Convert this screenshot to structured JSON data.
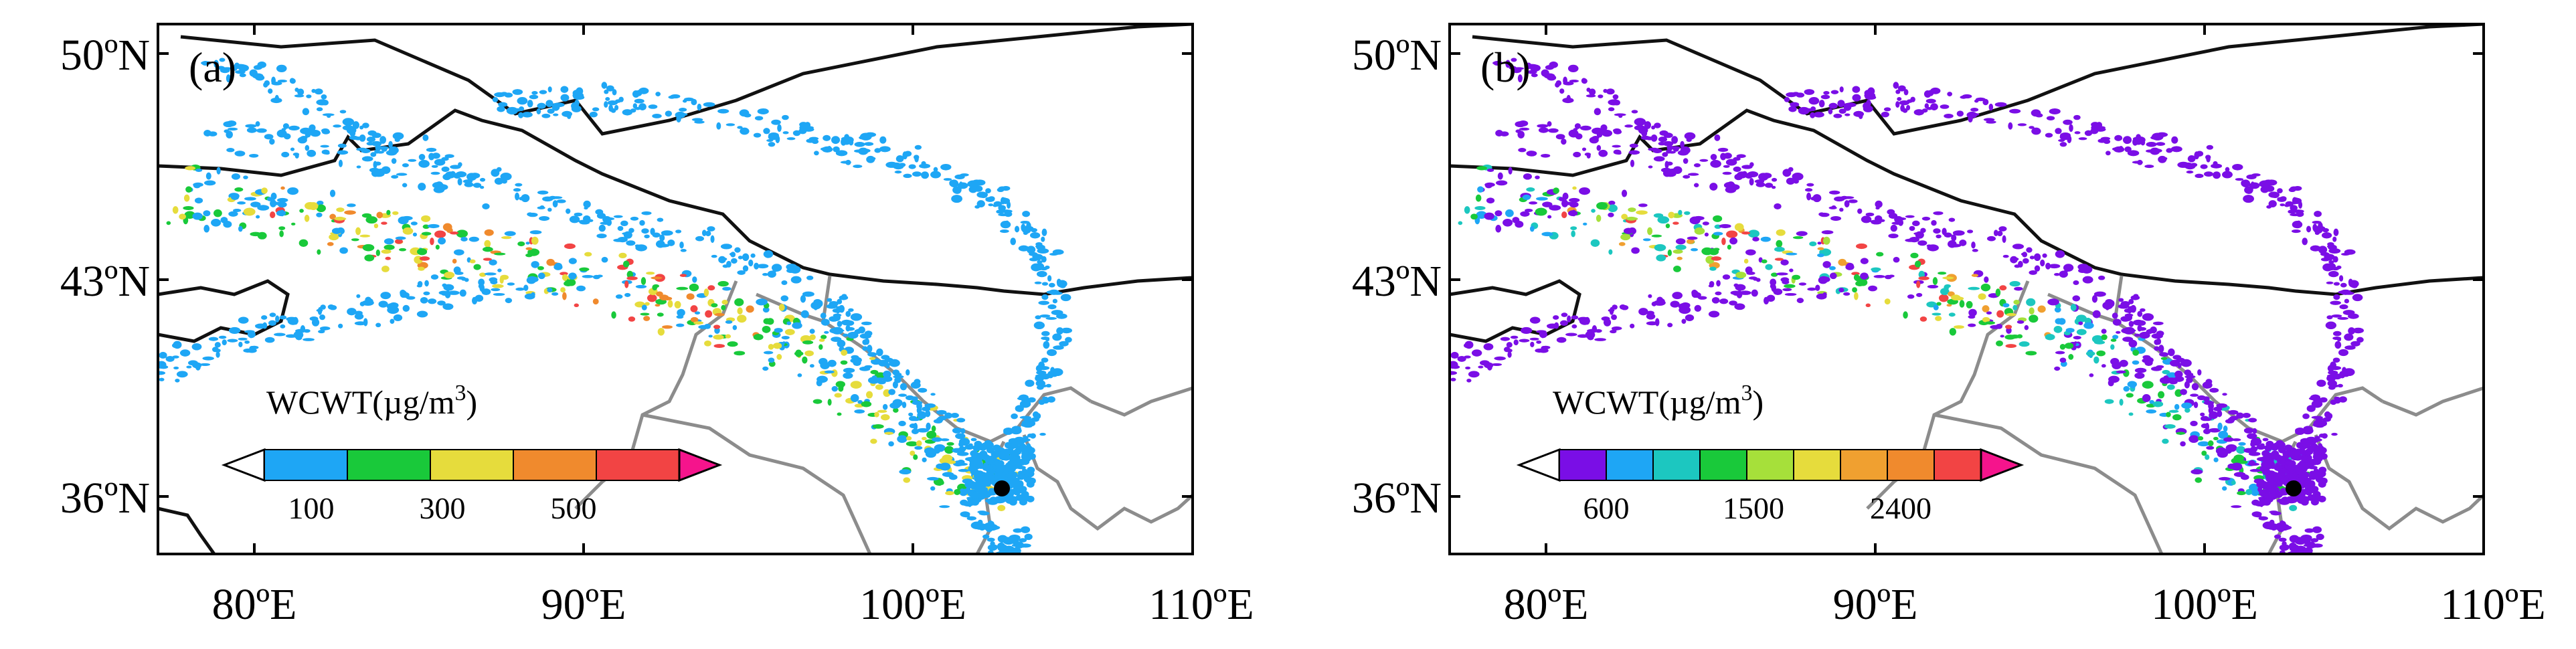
{
  "axes": {
    "lat_labels": [
      "50ºN",
      "43ºN",
      "36ºN"
    ],
    "lon_labels": [
      "80ºE",
      "90ºE",
      "100ºE",
      "110ºE"
    ]
  },
  "panels": [
    {
      "label": "(a)",
      "colorbar": {
        "title": "WCWT(µg/m",
        "title_sup": "3",
        "title_end": ")",
        "ticks": [
          "100",
          "300",
          "500"
        ],
        "colors": [
          "#ffffff",
          "#1ea6f5",
          "#19c93a",
          "#e6dc3c",
          "#f08a2d",
          "#f24444",
          "#f5148c"
        ]
      }
    },
    {
      "label": "(b)",
      "colorbar": {
        "title": "WCWT(µg/m",
        "title_sup": "3",
        "title_end": ")",
        "ticks": [
          "600",
          "1500",
          "2400"
        ],
        "colors": [
          "#ffffff",
          "#7a0ee6",
          "#1ea6f5",
          "#1cc7c0",
          "#19c93a",
          "#a6e03a",
          "#e6dc3c",
          "#f0a030",
          "#f08a2d",
          "#f24444",
          "#f5148c"
        ]
      }
    }
  ],
  "colors": {
    "country_border": "#111111",
    "province_border": "#8c8c8c",
    "receptor": "#000000"
  }
}
